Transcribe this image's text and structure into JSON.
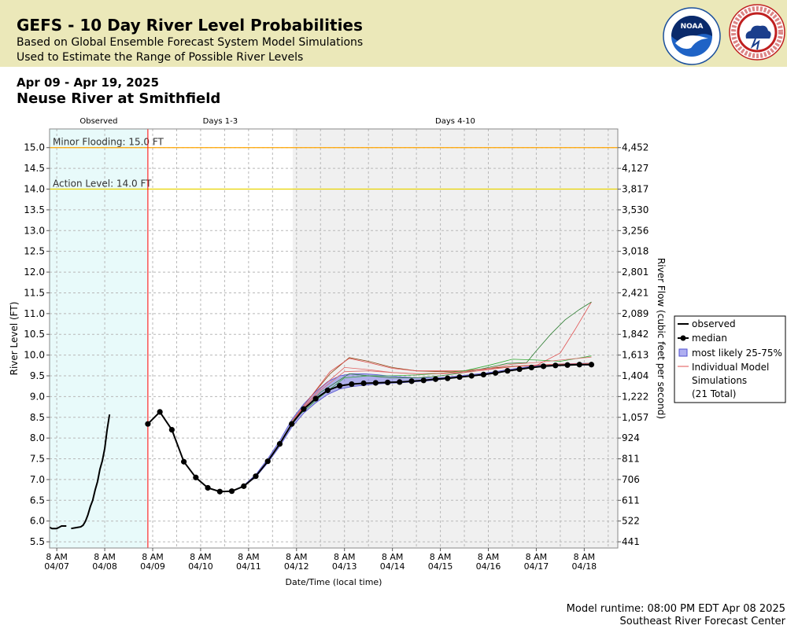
{
  "header": {
    "title": "GEFS - 10 Day River Level Probabilities",
    "subtitle1": "Based on Global Ensemble Forecast System Model Simulations",
    "subtitle2": "Used to Estimate the Range of Possible River Levels",
    "noaa_logo_text": "NOAA",
    "nws_logo_text": "NATIONAL WEATHER SERVICE"
  },
  "date_range": "Apr 09 - Apr 19, 2025",
  "station": "Neuse River at Smithfield",
  "footer": {
    "runtime": "Model runtime: 08:00 PM EDT Apr 08 2025",
    "center": "Southeast River Forecast Center"
  },
  "colors": {
    "observed_shade": "#e8fafa",
    "forecast_shade": "#f0f0f0",
    "minor_flood_line": "#ffa500",
    "action_line": "#e8d400",
    "forecast_start_line": "#ff0000",
    "band_fill": "#7a7ae8",
    "median": "#000000"
  },
  "chart_data": {
    "type": "line",
    "title": "GEFS - 10 Day River Level Probabilities",
    "xlabel": "Date/Time (local time)",
    "ylabel": "River Level (FT)",
    "y2label": "River Flow (cubic feet per second)",
    "xlim_days": [
      -2.15,
      9.7
    ],
    "ylim": [
      5.35,
      15.45
    ],
    "grid": true,
    "legend_position": "right",
    "periods": [
      {
        "label": "Observed",
        "from": -2.15,
        "to": -0.1
      },
      {
        "label": "Days 1-3",
        "from": -0.1,
        "to": 2.92
      },
      {
        "label": "Days 4-10",
        "from": 2.92,
        "to": 9.7
      }
    ],
    "thresholds": [
      {
        "label": "Minor Flooding: 15.0 FT",
        "value": 15.0,
        "color": "#ffa500"
      },
      {
        "label": "Action Level: 14.0 FT",
        "value": 14.0,
        "color": "#e8d400"
      }
    ],
    "forecast_start": -0.1,
    "y_ticks": [
      5.5,
      6.0,
      6.5,
      7.0,
      7.5,
      8.0,
      8.5,
      9.0,
      9.5,
      10.0,
      10.5,
      11.0,
      11.5,
      12.0,
      12.5,
      13.0,
      13.5,
      14.0,
      14.5,
      15.0
    ],
    "y2_ticks": [
      {
        "level": 5.5,
        "label": "441"
      },
      {
        "level": 6.0,
        "label": "522"
      },
      {
        "level": 6.5,
        "label": "611"
      },
      {
        "level": 7.0,
        "label": "706"
      },
      {
        "level": 7.5,
        "label": "811"
      },
      {
        "level": 8.0,
        "label": "924"
      },
      {
        "level": 8.5,
        "label": "1,057"
      },
      {
        "level": 9.0,
        "label": "1,222"
      },
      {
        "level": 9.5,
        "label": "1,404"
      },
      {
        "level": 10.0,
        "label": "1,613"
      },
      {
        "level": 10.5,
        "label": "1,842"
      },
      {
        "level": 11.0,
        "label": "2,089"
      },
      {
        "level": 11.5,
        "label": "2,421"
      },
      {
        "level": 12.0,
        "label": "2,801"
      },
      {
        "level": 12.5,
        "label": "3,018"
      },
      {
        "level": 13.0,
        "label": "3,256"
      },
      {
        "level": 13.5,
        "label": "3,530"
      },
      {
        "level": 14.0,
        "label": "3,817"
      },
      {
        "level": 14.5,
        "label": "4,127"
      },
      {
        "level": 15.0,
        "label": "4,452"
      }
    ],
    "x_ticks": [
      {
        "day": -2,
        "time": "8 AM",
        "date": "04/07"
      },
      {
        "day": -1,
        "time": "8 AM",
        "date": "04/08"
      },
      {
        "day": 0,
        "time": "8 AM",
        "date": "04/09"
      },
      {
        "day": 1,
        "time": "8 AM",
        "date": "04/10"
      },
      {
        "day": 2,
        "time": "8 AM",
        "date": "04/11"
      },
      {
        "day": 3,
        "time": "8 AM",
        "date": "04/12"
      },
      {
        "day": 4,
        "time": "8 AM",
        "date": "04/13"
      },
      {
        "day": 5,
        "time": "8 AM",
        "date": "04/14"
      },
      {
        "day": 6,
        "time": "8 AM",
        "date": "04/15"
      },
      {
        "day": 7,
        "time": "8 AM",
        "date": "04/16"
      },
      {
        "day": 8,
        "time": "8 AM",
        "date": "04/17"
      },
      {
        "day": 9,
        "time": "8 AM",
        "date": "04/18"
      }
    ],
    "legend": [
      {
        "label": "observed",
        "kind": "line"
      },
      {
        "label": "median",
        "kind": "marker"
      },
      {
        "label": "most likely 25-75%",
        "kind": "band"
      },
      {
        "label": "Individual Model Simulations",
        "kind": "thin"
      },
      {
        "label": "(21 Total)",
        "kind": "note"
      }
    ],
    "series": [
      {
        "name": "observed",
        "segments": [
          [
            [
              -2.15,
              5.85
            ],
            [
              -2.1,
              5.82
            ],
            [
              -2.0,
              5.82
            ],
            [
              -1.95,
              5.85
            ],
            [
              -1.9,
              5.88
            ],
            [
              -1.8,
              5.88
            ]
          ],
          [
            [
              -1.7,
              5.82
            ],
            [
              -1.6,
              5.84
            ],
            [
              -1.5,
              5.86
            ],
            [
              -1.45,
              5.9
            ],
            [
              -1.4,
              6.0
            ],
            [
              -1.35,
              6.15
            ],
            [
              -1.3,
              6.35
            ],
            [
              -1.25,
              6.5
            ],
            [
              -1.2,
              6.75
            ],
            [
              -1.15,
              6.95
            ],
            [
              -1.1,
              7.25
            ],
            [
              -1.05,
              7.45
            ],
            [
              -1.0,
              7.75
            ],
            [
              -0.95,
              8.2
            ],
            [
              -0.9,
              8.57
            ]
          ]
        ]
      },
      {
        "name": "median",
        "x": [
          -0.1,
          0.15,
          0.4,
          0.65,
          0.9,
          1.15,
          1.4,
          1.65,
          1.9,
          2.15,
          2.4,
          2.65,
          2.9,
          3.15,
          3.4,
          3.65,
          3.9,
          4.15,
          4.4,
          4.65,
          4.9,
          5.15,
          5.4,
          5.65,
          5.9,
          6.15,
          6.4,
          6.65,
          6.9,
          7.15,
          7.4,
          7.65,
          7.9,
          8.15,
          8.4,
          8.65,
          8.9,
          9.15
        ],
        "y": [
          8.34,
          8.63,
          8.2,
          7.43,
          7.05,
          6.8,
          6.71,
          6.72,
          6.84,
          7.08,
          7.44,
          7.86,
          8.34,
          8.7,
          8.95,
          9.15,
          9.26,
          9.3,
          9.32,
          9.33,
          9.34,
          9.35,
          9.37,
          9.39,
          9.42,
          9.44,
          9.47,
          9.5,
          9.53,
          9.57,
          9.62,
          9.66,
          9.7,
          9.73,
          9.75,
          9.76,
          9.77,
          9.77
        ]
      },
      {
        "name": "most likely 25-75%",
        "x": [
          -0.1,
          0.15,
          0.4,
          0.65,
          0.9,
          1.15,
          1.4,
          1.65,
          1.9,
          2.15,
          2.4,
          2.65,
          2.9,
          3.15,
          3.4,
          3.65,
          3.9,
          4.15,
          4.4,
          4.65,
          4.9,
          5.15,
          5.4,
          5.65,
          5.9,
          6.15,
          6.4,
          6.65,
          6.9,
          7.15,
          7.4,
          7.65,
          7.9,
          8.15,
          8.4,
          8.65,
          8.9,
          9.15
        ],
        "low": [
          8.34,
          8.63,
          8.2,
          7.43,
          7.05,
          6.8,
          6.71,
          6.72,
          6.84,
          7.06,
          7.4,
          7.8,
          8.26,
          8.6,
          8.85,
          9.05,
          9.18,
          9.24,
          9.27,
          9.3,
          9.32,
          9.33,
          9.35,
          9.37,
          9.4,
          9.43,
          9.46,
          9.49,
          9.52,
          9.56,
          9.61,
          9.65,
          9.69,
          9.72,
          9.74,
          9.75,
          9.76,
          9.76
        ],
        "high": [
          8.34,
          8.63,
          8.2,
          7.43,
          7.05,
          6.8,
          6.71,
          6.72,
          6.86,
          7.12,
          7.5,
          7.94,
          8.44,
          8.82,
          9.12,
          9.36,
          9.5,
          9.55,
          9.55,
          9.53,
          9.5,
          9.48,
          9.46,
          9.45,
          9.45,
          9.47,
          9.5,
          9.53,
          9.56,
          9.6,
          9.65,
          9.69,
          9.73,
          9.76,
          9.78,
          9.79,
          9.8,
          9.8
        ]
      }
    ],
    "members": [
      {
        "color": "#8b4513",
        "x": [
          2.9,
          3.3,
          3.7,
          4.1,
          4.5,
          5.0,
          5.5,
          6.0,
          6.5,
          7.0,
          7.5,
          8.0,
          8.5,
          9.15
        ],
        "y": [
          8.4,
          9.0,
          9.55,
          9.94,
          9.85,
          9.7,
          9.62,
          9.6,
          9.62,
          9.68,
          9.73,
          9.76,
          9.78,
          9.8
        ]
      },
      {
        "color": "#e05050",
        "x": [
          2.9,
          3.3,
          3.7,
          4.1,
          4.5,
          5.0,
          5.5,
          6.0,
          6.5,
          7.0,
          7.5,
          8.0,
          8.5,
          8.8,
          9.15
        ],
        "y": [
          8.4,
          9.0,
          9.6,
          9.92,
          9.82,
          9.68,
          9.62,
          9.62,
          9.62,
          9.66,
          9.72,
          9.75,
          10.05,
          10.6,
          11.28
        ]
      },
      {
        "color": "#2e7d32",
        "x": [
          2.9,
          3.5,
          4.1,
          4.5,
          5.0,
          5.5,
          6.0,
          6.5,
          7.0,
          7.4,
          7.8,
          8.0,
          8.3,
          8.6,
          8.9,
          9.15
        ],
        "y": [
          8.4,
          9.1,
          9.55,
          9.5,
          9.45,
          9.45,
          9.5,
          9.58,
          9.7,
          9.8,
          9.82,
          10.1,
          10.5,
          10.85,
          11.1,
          11.28
        ]
      },
      {
        "color": "#e06060",
        "x": [
          2.9,
          3.5,
          4.0,
          4.5,
          5.0,
          5.5,
          6.0,
          6.5,
          7.0,
          7.5,
          8.0,
          8.5,
          9.15
        ],
        "y": [
          8.4,
          9.2,
          9.7,
          9.65,
          9.58,
          9.55,
          9.55,
          9.58,
          9.65,
          9.72,
          9.76,
          9.78,
          9.8
        ]
      },
      {
        "color": "#33aa33",
        "x": [
          2.9,
          3.5,
          4.0,
          4.5,
          5.0,
          5.5,
          6.0,
          6.5,
          7.0,
          7.5,
          8.0,
          8.5,
          9.15
        ],
        "y": [
          8.4,
          9.0,
          9.45,
          9.5,
          9.5,
          9.52,
          9.56,
          9.62,
          9.75,
          9.9,
          9.88,
          9.85,
          9.98
        ]
      },
      {
        "color": "#e07070",
        "x": [
          2.9,
          3.5,
          4.0,
          4.5,
          5.0,
          5.5,
          6.0,
          6.5,
          7.0,
          7.5,
          8.0,
          8.5,
          9.15
        ],
        "y": [
          8.4,
          9.15,
          9.6,
          9.62,
          9.58,
          9.55,
          9.56,
          9.6,
          9.68,
          9.78,
          9.82,
          9.88,
          9.95
        ]
      }
    ]
  }
}
